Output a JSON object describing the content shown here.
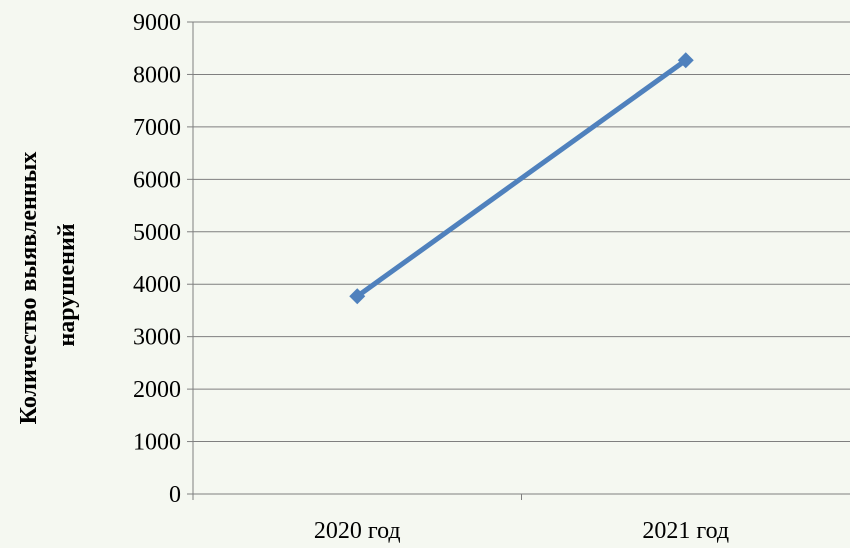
{
  "chart_data": {
    "type": "line",
    "categories": [
      "2020 год",
      "2021 год"
    ],
    "series": [
      {
        "values": [
          3770,
          8270
        ]
      }
    ],
    "title": "",
    "xlabel": "",
    "ylabel": [
      "Количество выявленных",
      "нарушений"
    ],
    "ylim": [
      0,
      9000
    ],
    "yticks": [
      "0",
      "1000",
      "2000",
      "3000",
      "4000",
      "5000",
      "6000",
      "7000",
      "8000",
      "9000"
    ],
    "grid": true,
    "legend": "none",
    "colors": {
      "background": "#f5f8f1",
      "line": "#4f81bd",
      "grid": "#7f7f7f",
      "axis": "#7f7f7f"
    }
  }
}
